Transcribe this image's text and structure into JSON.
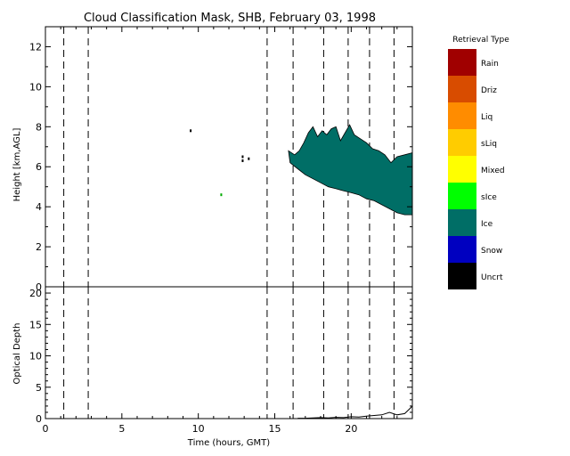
{
  "chart_data": [
    {
      "type": "heatmap",
      "title": "Cloud Classification Mask, SHB, February 03, 1998",
      "xlabel": "",
      "ylabel": "Height [km,AGL]",
      "xlim": [
        0,
        24
      ],
      "ylim": [
        0,
        13
      ],
      "yticks": [
        0,
        2,
        4,
        6,
        8,
        10,
        12
      ],
      "vertical_dashed_lines_x": [
        1.2,
        2.8,
        14.5,
        16.2,
        18.2,
        19.8,
        21.2,
        22.8
      ],
      "ice_cloud_region": {
        "class": "Ice",
        "color": "#006e66",
        "outline": [
          [
            15.9,
            6.8
          ],
          [
            16.3,
            6.6
          ],
          [
            16.6,
            6.8
          ],
          [
            16.9,
            7.2
          ],
          [
            17.2,
            7.7
          ],
          [
            17.5,
            8.0
          ],
          [
            17.8,
            7.5
          ],
          [
            18.1,
            7.8
          ],
          [
            18.4,
            7.6
          ],
          [
            18.7,
            7.9
          ],
          [
            19.0,
            8.0
          ],
          [
            19.3,
            7.3
          ],
          [
            19.6,
            7.7
          ],
          [
            19.9,
            8.1
          ],
          [
            20.2,
            7.6
          ],
          [
            20.6,
            7.4
          ],
          [
            21.0,
            7.2
          ],
          [
            21.4,
            6.9
          ],
          [
            21.8,
            6.8
          ],
          [
            22.2,
            6.6
          ],
          [
            22.6,
            6.2
          ],
          [
            23.0,
            6.5
          ],
          [
            23.5,
            6.6
          ],
          [
            24.0,
            6.7
          ],
          [
            24.0,
            3.6
          ],
          [
            23.5,
            3.6
          ],
          [
            23.0,
            3.7
          ],
          [
            22.5,
            3.9
          ],
          [
            22.0,
            4.1
          ],
          [
            21.5,
            4.3
          ],
          [
            21.0,
            4.4
          ],
          [
            20.5,
            4.6
          ],
          [
            20.0,
            4.7
          ],
          [
            19.5,
            4.8
          ],
          [
            19.0,
            4.9
          ],
          [
            18.5,
            5.0
          ],
          [
            18.0,
            5.2
          ],
          [
            17.5,
            5.4
          ],
          [
            17.0,
            5.6
          ],
          [
            16.5,
            5.9
          ],
          [
            16.0,
            6.2
          ]
        ]
      },
      "isolated_points": [
        [
          9.5,
          7.8
        ],
        [
          11.5,
          4.6
        ],
        [
          12.9,
          6.5
        ],
        [
          12.9,
          6.3
        ],
        [
          13.3,
          6.4
        ]
      ]
    },
    {
      "type": "line",
      "xlabel": "Time (hours, GMT)",
      "ylabel": "Optical Depth",
      "xlim": [
        0,
        24
      ],
      "ylim": [
        0,
        21
      ],
      "xticks": [
        0,
        5,
        10,
        15,
        20
      ],
      "yticks": [
        0,
        5,
        10,
        15,
        20
      ],
      "vertical_dashed_lines_x": [
        1.2,
        2.8,
        14.5,
        16.2,
        18.2,
        19.8,
        21.2,
        22.8
      ],
      "series": [
        {
          "x": [
            16.5,
            17.0,
            17.5,
            18.0,
            18.5,
            19.0,
            19.5,
            20.0,
            20.5,
            21.0,
            21.5,
            22.0,
            22.5,
            23.0,
            23.5,
            23.8,
            24.0
          ],
          "values": [
            0.05,
            0.05,
            0.1,
            0.15,
            0.1,
            0.2,
            0.15,
            0.3,
            0.25,
            0.4,
            0.5,
            0.6,
            1.0,
            0.6,
            0.8,
            1.5,
            2.0
          ]
        }
      ]
    }
  ],
  "legend": {
    "title": "Retrieval Type",
    "items": [
      {
        "label": "Rain",
        "color": "#a00000"
      },
      {
        "label": "Driz",
        "color": "#d84c00"
      },
      {
        "label": "Liq",
        "color": "#ff8c00"
      },
      {
        "label": "sLiq",
        "color": "#ffcc00"
      },
      {
        "label": "Mixed",
        "color": "#ffff00"
      },
      {
        "label": "sIce",
        "color": "#00ff00"
      },
      {
        "label": "Ice",
        "color": "#006e66"
      },
      {
        "label": "Snow",
        "color": "#0000c0"
      },
      {
        "label": "Uncrt",
        "color": "#000000"
      }
    ]
  }
}
